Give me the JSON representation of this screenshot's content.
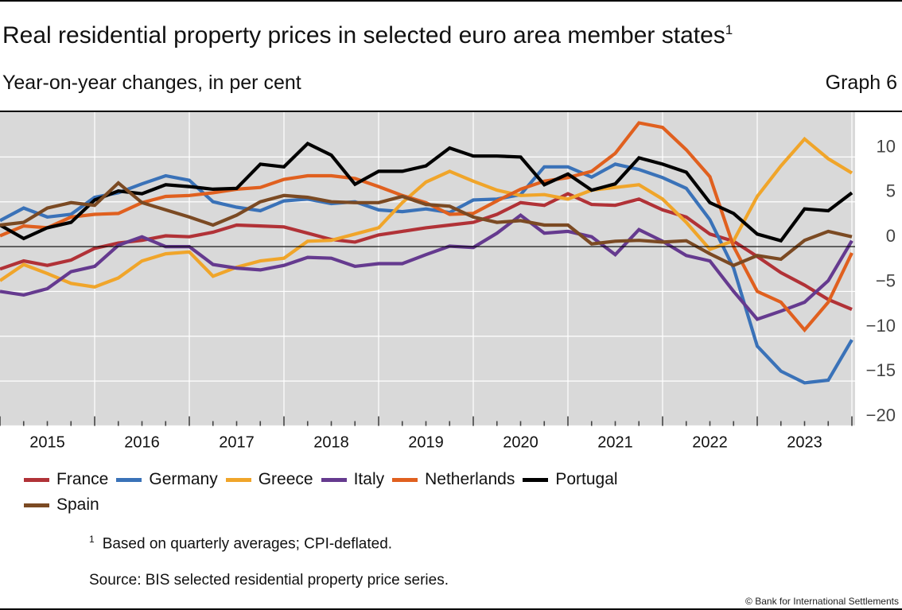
{
  "header": {
    "title": "Real residential property prices in selected euro area member states",
    "title_footnote_mark": "1",
    "subtitle": "Year-on-year changes, in per cent",
    "graph_number": "Graph 6"
  },
  "chart_data": {
    "type": "line",
    "title": "Real residential property prices in selected euro area member states",
    "ylabel": "Year-on-year changes, in per cent",
    "xlabel": "",
    "xlim": [
      2015,
      2024
    ],
    "ylim": [
      -20,
      15
    ],
    "y_axis_side": "right",
    "y_ticks": [
      -20,
      -15,
      -10,
      -5,
      0,
      5,
      10
    ],
    "y_tick_labels": [
      "−20",
      "−15",
      "−10",
      "−5",
      "0",
      "5",
      "10"
    ],
    "x_tick_labels": [
      "2015",
      "2016",
      "2017",
      "2018",
      "2019",
      "2020",
      "2021",
      "2022",
      "2023"
    ],
    "grid": true,
    "background": "#d9d9d9",
    "legend_placement": "bottom",
    "x": [
      2015,
      2015.25,
      2015.5,
      2015.75,
      2016,
      2016.25,
      2016.5,
      2016.75,
      2017,
      2017.25,
      2017.5,
      2017.75,
      2018,
      2018.25,
      2018.5,
      2018.75,
      2019,
      2019.25,
      2019.5,
      2019.75,
      2020,
      2020.25,
      2020.5,
      2020.75,
      2021,
      2021.25,
      2021.5,
      2021.75,
      2022,
      2022.25,
      2022.5,
      2022.75,
      2023,
      2023.25,
      2023.5,
      2023.75,
      2024
    ],
    "series": [
      {
        "name": "France",
        "color": "#b13237",
        "values": [
          -2.5,
          -1.6,
          -2.1,
          -1.5,
          -0.2,
          0.4,
          0.7,
          1.2,
          1.1,
          1.6,
          2.4,
          2.3,
          2.2,
          1.5,
          0.8,
          0.5,
          1.3,
          1.7,
          2.1,
          2.4,
          2.7,
          3.6,
          4.9,
          4.6,
          5.9,
          4.7,
          4.6,
          5.3,
          4.1,
          3.3,
          1.4,
          0.6,
          -1.1,
          -2.9,
          -4.3,
          -5.9,
          -7.0
        ]
      },
      {
        "name": "Germany",
        "color": "#3a72b8",
        "values": [
          2.9,
          4.3,
          3.3,
          3.6,
          5.5,
          6.0,
          7.0,
          7.9,
          7.4,
          5.0,
          4.4,
          4.0,
          5.1,
          5.3,
          4.8,
          5.0,
          4.1,
          3.9,
          4.2,
          3.8,
          5.2,
          5.3,
          5.8,
          8.9,
          8.9,
          7.75,
          9.2,
          8.6,
          7.7,
          6.5,
          3.0,
          -2.4,
          -11.1,
          -13.9,
          -15.2,
          -14.9,
          -10.4
        ]
      },
      {
        "name": "Greece",
        "color": "#f0a52a",
        "values": [
          -3.8,
          -2.0,
          -3.0,
          -4.1,
          -4.5,
          -3.5,
          -1.6,
          -0.8,
          -0.6,
          -3.3,
          -2.3,
          -1.6,
          -1.3,
          0.6,
          0.7,
          1.4,
          2.1,
          4.9,
          7.2,
          8.4,
          7.3,
          6.3,
          5.7,
          5.8,
          5.3,
          6.3,
          6.6,
          6.9,
          5.3,
          2.7,
          -0.3,
          0.65,
          5.6,
          9.0,
          12.0,
          9.8,
          8.2
        ]
      },
      {
        "name": "Italy",
        "color": "#653a8f",
        "values": [
          -5.0,
          -5.4,
          -4.7,
          -2.8,
          -2.2,
          0.15,
          1.1,
          0,
          0,
          -2.0,
          -2.4,
          -2.6,
          -2.1,
          -1.2,
          -1.3,
          -2.2,
          -1.9,
          -1.9,
          -0.9,
          0.05,
          -0.1,
          1.5,
          3.5,
          1.5,
          1.7,
          1.1,
          -0.9,
          1.9,
          0.6,
          -1.0,
          -1.6,
          -5.0,
          -8.1,
          -7.2,
          -6.2,
          -3.8,
          0.65
        ]
      },
      {
        "name": "Netherlands",
        "color": "#e0601f",
        "values": [
          1.2,
          2.3,
          2.1,
          3.3,
          3.6,
          3.7,
          4.9,
          5.6,
          5.7,
          6.0,
          6.4,
          6.6,
          7.5,
          7.9,
          7.9,
          7.6,
          6.7,
          5.7,
          4.9,
          3.6,
          3.7,
          5.1,
          6.4,
          7.3,
          7.7,
          8.4,
          10.4,
          13.8,
          13.3,
          10.8,
          7.8,
          0,
          -5.0,
          -6.2,
          -9.3,
          -6.2,
          -0.7
        ]
      },
      {
        "name": "Portugal",
        "color": "#000000",
        "values": [
          2.4,
          0.9,
          2.1,
          2.7,
          5.2,
          6.2,
          5.9,
          6.9,
          6.7,
          6.4,
          6.5,
          9.2,
          8.9,
          11.5,
          10.2,
          6.95,
          8.4,
          8.4,
          9.0,
          11.0,
          10.1,
          10.1,
          10.0,
          6.9,
          8.1,
          6.3,
          7.0,
          9.9,
          9.2,
          8.3,
          4.9,
          3.7,
          1.4,
          0.65,
          4.2,
          4.0,
          6.0
        ]
      },
      {
        "name": "Spain",
        "color": "#7b4a23",
        "values": [
          2.4,
          2.7,
          4.3,
          4.9,
          4.6,
          7.1,
          4.9,
          4.1,
          3.3,
          2.4,
          3.5,
          5.0,
          5.7,
          5.5,
          5.0,
          4.9,
          4.9,
          5.6,
          4.7,
          4.5,
          3.3,
          2.7,
          2.9,
          2.4,
          2.4,
          0.3,
          0.6,
          0.7,
          0.5,
          0.65,
          -0.8,
          -2.1,
          -1.0,
          -1.4,
          0.7,
          1.7,
          1.1
        ]
      }
    ]
  },
  "footer": {
    "footnote_mark": "1",
    "footnote": "Based on quarterly averages; CPI-deflated.",
    "source": "Source: BIS selected residential property price series.",
    "copyright": "© Bank for International Settlements"
  }
}
